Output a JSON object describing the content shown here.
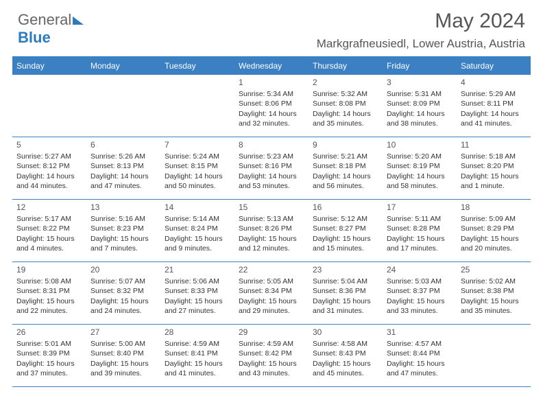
{
  "brand": {
    "part1": "General",
    "part2": "Blue"
  },
  "title": "May 2024",
  "location": "Markgrafneusiedl, Lower Austria, Austria",
  "colors": {
    "accent": "#3a80c3",
    "text": "#333333",
    "muted": "#555555",
    "bg": "#ffffff"
  },
  "weekday_labels": [
    "Sunday",
    "Monday",
    "Tuesday",
    "Wednesday",
    "Thursday",
    "Friday",
    "Saturday"
  ],
  "days": {
    "1": {
      "sr": "5:34 AM",
      "ss": "8:06 PM",
      "dl": "14 hours and 32 minutes."
    },
    "2": {
      "sr": "5:32 AM",
      "ss": "8:08 PM",
      "dl": "14 hours and 35 minutes."
    },
    "3": {
      "sr": "5:31 AM",
      "ss": "8:09 PM",
      "dl": "14 hours and 38 minutes."
    },
    "4": {
      "sr": "5:29 AM",
      "ss": "8:11 PM",
      "dl": "14 hours and 41 minutes."
    },
    "5": {
      "sr": "5:27 AM",
      "ss": "8:12 PM",
      "dl": "14 hours and 44 minutes."
    },
    "6": {
      "sr": "5:26 AM",
      "ss": "8:13 PM",
      "dl": "14 hours and 47 minutes."
    },
    "7": {
      "sr": "5:24 AM",
      "ss": "8:15 PM",
      "dl": "14 hours and 50 minutes."
    },
    "8": {
      "sr": "5:23 AM",
      "ss": "8:16 PM",
      "dl": "14 hours and 53 minutes."
    },
    "9": {
      "sr": "5:21 AM",
      "ss": "8:18 PM",
      "dl": "14 hours and 56 minutes."
    },
    "10": {
      "sr": "5:20 AM",
      "ss": "8:19 PM",
      "dl": "14 hours and 58 minutes."
    },
    "11": {
      "sr": "5:18 AM",
      "ss": "8:20 PM",
      "dl": "15 hours and 1 minute."
    },
    "12": {
      "sr": "5:17 AM",
      "ss": "8:22 PM",
      "dl": "15 hours and 4 minutes."
    },
    "13": {
      "sr": "5:16 AM",
      "ss": "8:23 PM",
      "dl": "15 hours and 7 minutes."
    },
    "14": {
      "sr": "5:14 AM",
      "ss": "8:24 PM",
      "dl": "15 hours and 9 minutes."
    },
    "15": {
      "sr": "5:13 AM",
      "ss": "8:26 PM",
      "dl": "15 hours and 12 minutes."
    },
    "16": {
      "sr": "5:12 AM",
      "ss": "8:27 PM",
      "dl": "15 hours and 15 minutes."
    },
    "17": {
      "sr": "5:11 AM",
      "ss": "8:28 PM",
      "dl": "15 hours and 17 minutes."
    },
    "18": {
      "sr": "5:09 AM",
      "ss": "8:29 PM",
      "dl": "15 hours and 20 minutes."
    },
    "19": {
      "sr": "5:08 AM",
      "ss": "8:31 PM",
      "dl": "15 hours and 22 minutes."
    },
    "20": {
      "sr": "5:07 AM",
      "ss": "8:32 PM",
      "dl": "15 hours and 24 minutes."
    },
    "21": {
      "sr": "5:06 AM",
      "ss": "8:33 PM",
      "dl": "15 hours and 27 minutes."
    },
    "22": {
      "sr": "5:05 AM",
      "ss": "8:34 PM",
      "dl": "15 hours and 29 minutes."
    },
    "23": {
      "sr": "5:04 AM",
      "ss": "8:36 PM",
      "dl": "15 hours and 31 minutes."
    },
    "24": {
      "sr": "5:03 AM",
      "ss": "8:37 PM",
      "dl": "15 hours and 33 minutes."
    },
    "25": {
      "sr": "5:02 AM",
      "ss": "8:38 PM",
      "dl": "15 hours and 35 minutes."
    },
    "26": {
      "sr": "5:01 AM",
      "ss": "8:39 PM",
      "dl": "15 hours and 37 minutes."
    },
    "27": {
      "sr": "5:00 AM",
      "ss": "8:40 PM",
      "dl": "15 hours and 39 minutes."
    },
    "28": {
      "sr": "4:59 AM",
      "ss": "8:41 PM",
      "dl": "15 hours and 41 minutes."
    },
    "29": {
      "sr": "4:59 AM",
      "ss": "8:42 PM",
      "dl": "15 hours and 43 minutes."
    },
    "30": {
      "sr": "4:58 AM",
      "ss": "8:43 PM",
      "dl": "15 hours and 45 minutes."
    },
    "31": {
      "sr": "4:57 AM",
      "ss": "8:44 PM",
      "dl": "15 hours and 47 minutes."
    }
  },
  "weeks": [
    [
      null,
      null,
      null,
      "1",
      "2",
      "3",
      "4"
    ],
    [
      "5",
      "6",
      "7",
      "8",
      "9",
      "10",
      "11"
    ],
    [
      "12",
      "13",
      "14",
      "15",
      "16",
      "17",
      "18"
    ],
    [
      "19",
      "20",
      "21",
      "22",
      "23",
      "24",
      "25"
    ],
    [
      "26",
      "27",
      "28",
      "29",
      "30",
      "31",
      null
    ]
  ],
  "labels": {
    "sunrise": "Sunrise:",
    "sunset": "Sunset:",
    "daylight": "Daylight:"
  }
}
